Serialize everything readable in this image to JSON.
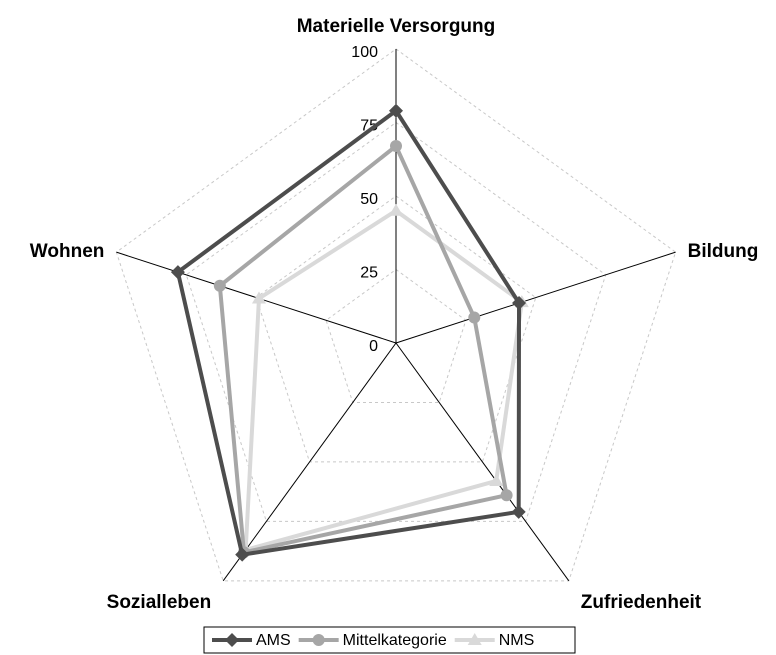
{
  "chart_data": {
    "type": "radar",
    "categories": [
      "Materielle Versorgung",
      "Bildung",
      "Zufriedenheit",
      "Sozialleben",
      "Wohnen"
    ],
    "rlim": [
      0,
      100
    ],
    "rticks": [
      0,
      25,
      50,
      75,
      100
    ],
    "grid": true,
    "series": [
      {
        "name": "AMS",
        "color": "#4d4d4d",
        "marker": "diamond",
        "values": [
          79,
          44,
          71,
          89,
          78
        ]
      },
      {
        "name": "Mittelkategorie",
        "color": "#a6a6a6",
        "marker": "circle",
        "values": [
          67,
          28,
          64,
          88,
          63
        ]
      },
      {
        "name": "NMS",
        "color": "#d9d9d9",
        "marker": "triangle",
        "values": [
          45,
          45,
          58,
          87,
          49
        ]
      }
    ]
  }
}
